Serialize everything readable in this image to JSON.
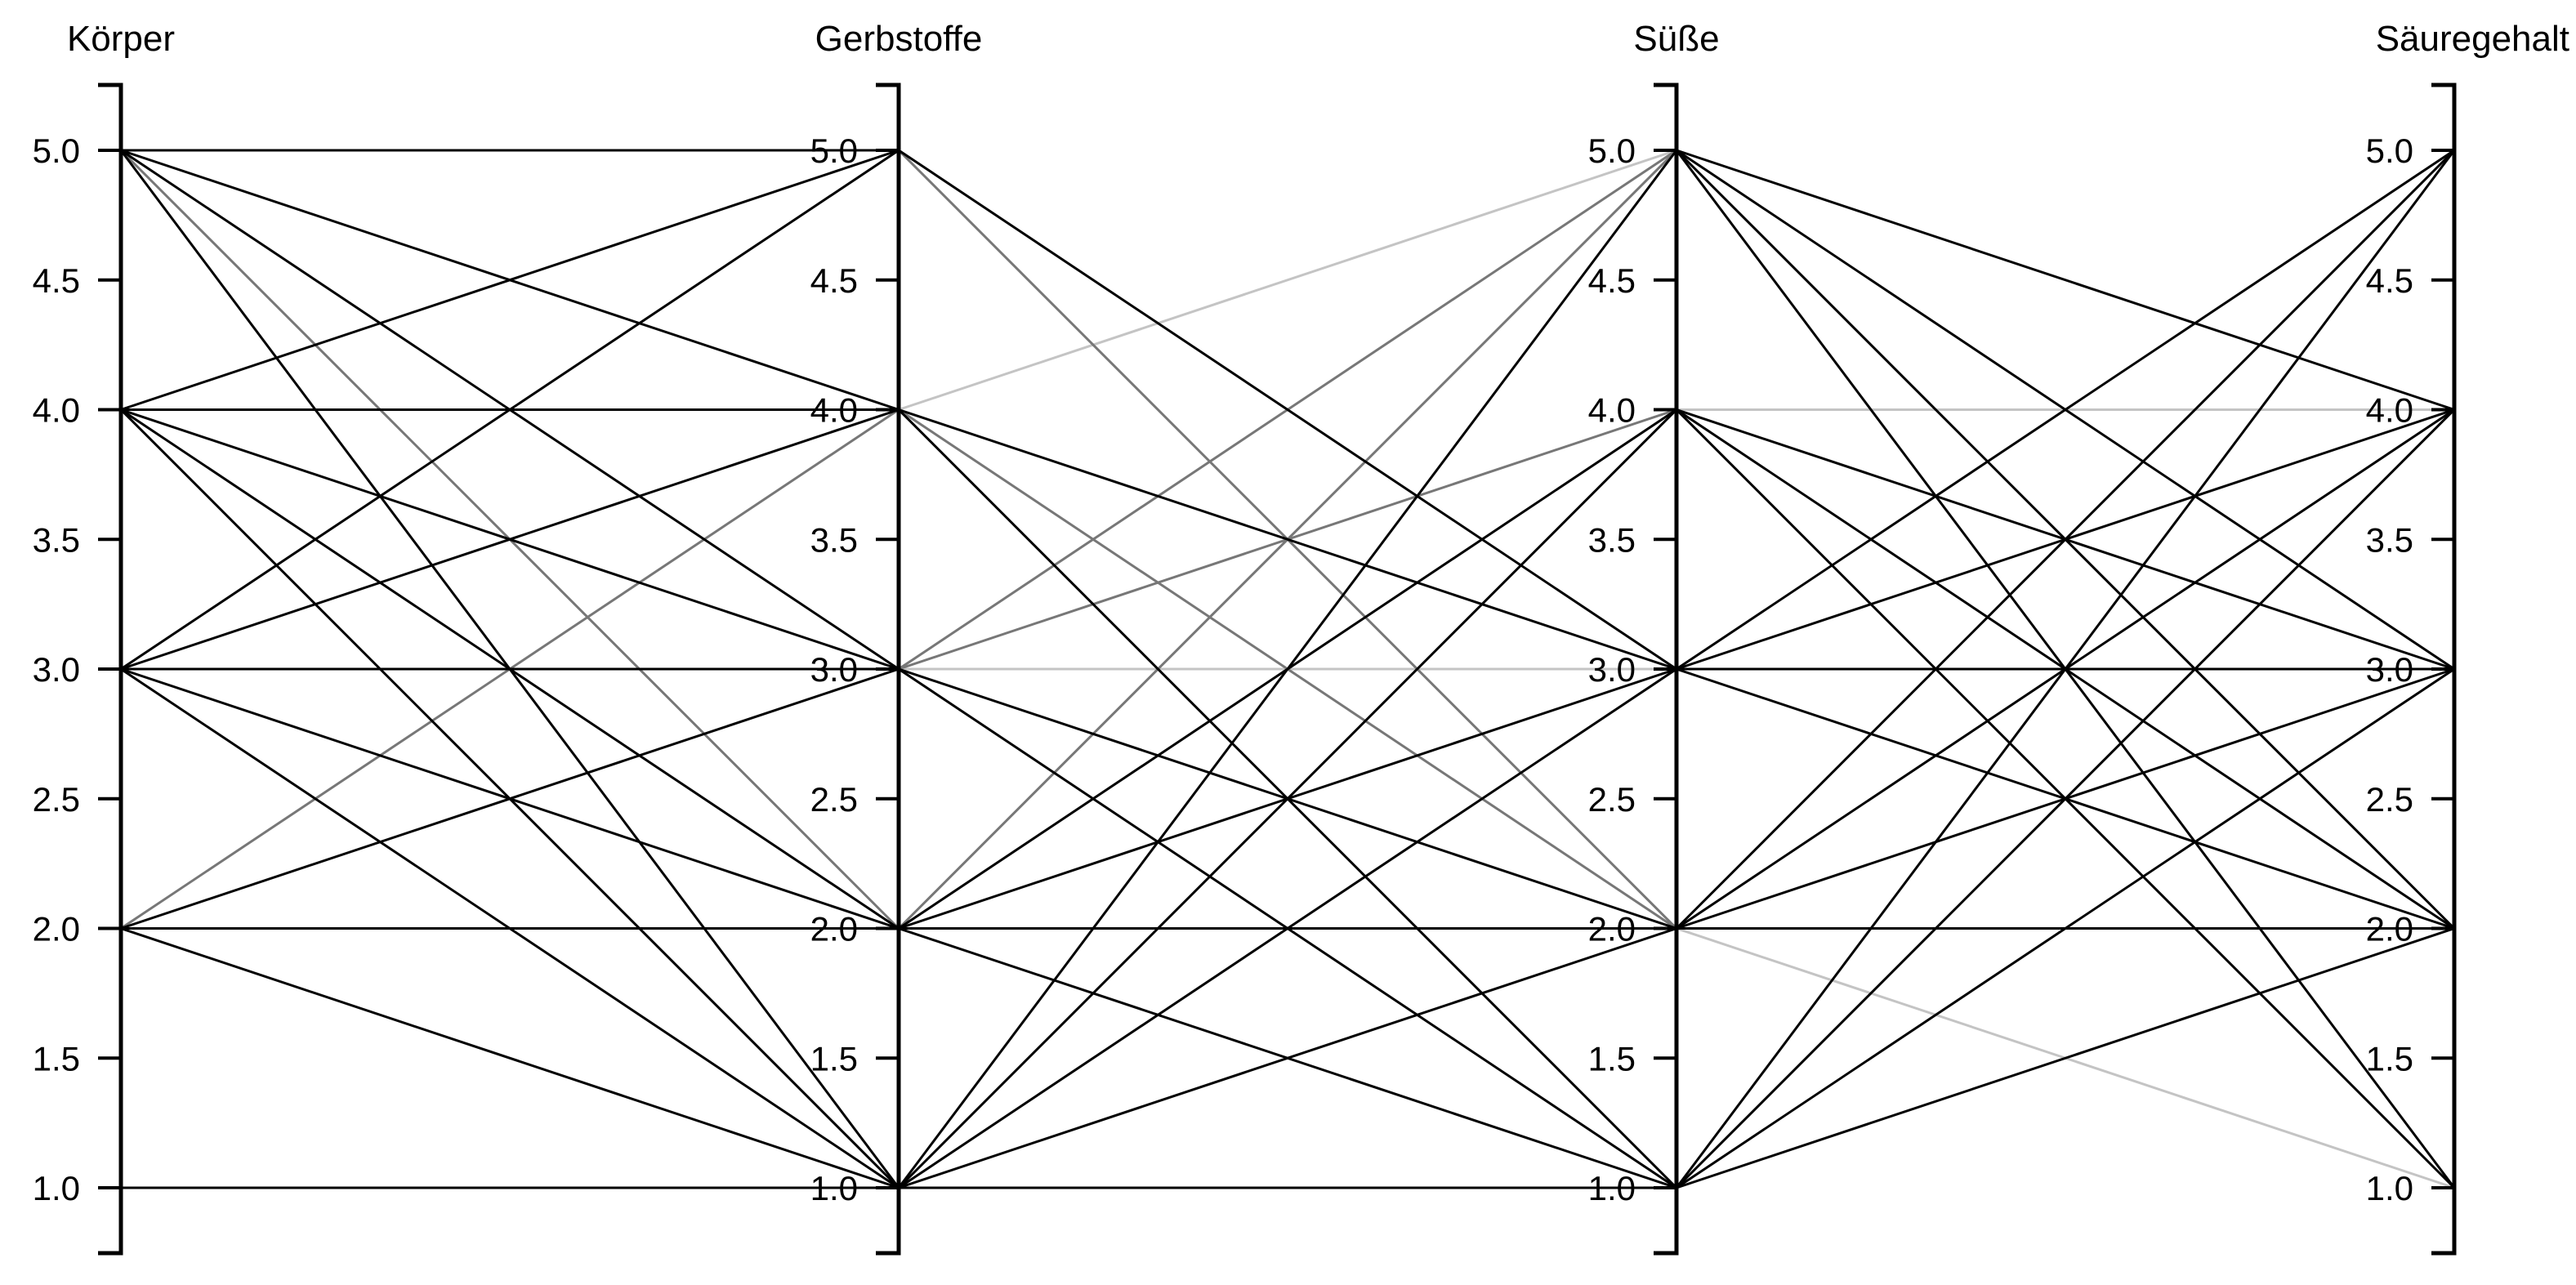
{
  "chart_data": {
    "type": "parallel_coordinates",
    "axes": [
      {
        "name": "Körper",
        "ticks": [
          "1.0",
          "1.5",
          "2.0",
          "2.5",
          "3.0",
          "3.5",
          "4.0",
          "4.5",
          "5.0"
        ]
      },
      {
        "name": "Gerbstoffe",
        "ticks": [
          "1.0",
          "1.5",
          "2.0",
          "2.5",
          "3.0",
          "3.5",
          "4.0",
          "4.5",
          "5.0"
        ]
      },
      {
        "name": "Süße",
        "ticks": [
          "1.0",
          "1.5",
          "2.0",
          "2.5",
          "3.0",
          "3.5",
          "4.0",
          "4.5",
          "5.0"
        ]
      },
      {
        "name": "Säuregehalt",
        "ticks": [
          "1.0",
          "1.5",
          "2.0",
          "2.5",
          "3.0",
          "3.5",
          "4.0",
          "4.5",
          "5.0"
        ]
      }
    ],
    "range": [
      1.0,
      5.0
    ],
    "colors": {
      "dark": "#000000",
      "mid": "#777777",
      "light": "#c4c4c4"
    },
    "segments": [
      {
        "pair": 0,
        "links": [
          [
            5,
            5,
            "dark"
          ],
          [
            5,
            4,
            "dark"
          ],
          [
            5,
            3,
            "dark"
          ],
          [
            5,
            2,
            "mid"
          ],
          [
            5,
            1,
            "dark"
          ],
          [
            4,
            5,
            "dark"
          ],
          [
            4,
            4,
            "dark"
          ],
          [
            4,
            3,
            "dark"
          ],
          [
            4,
            2,
            "dark"
          ],
          [
            4,
            1,
            "dark"
          ],
          [
            3,
            5,
            "dark"
          ],
          [
            3,
            4,
            "dark"
          ],
          [
            3,
            3,
            "dark"
          ],
          [
            3,
            2,
            "dark"
          ],
          [
            3,
            1,
            "dark"
          ],
          [
            2,
            4,
            "mid"
          ],
          [
            2,
            3,
            "dark"
          ],
          [
            2,
            2,
            "dark"
          ],
          [
            2,
            1,
            "dark"
          ],
          [
            1,
            1,
            "dark"
          ]
        ]
      },
      {
        "pair": 1,
        "links": [
          [
            5,
            3,
            "dark"
          ],
          [
            5,
            2,
            "mid"
          ],
          [
            4,
            5,
            "light"
          ],
          [
            4,
            3,
            "dark"
          ],
          [
            4,
            2,
            "mid"
          ],
          [
            4,
            1,
            "dark"
          ],
          [
            3,
            5,
            "mid"
          ],
          [
            3,
            4,
            "mid"
          ],
          [
            3,
            3,
            "light"
          ],
          [
            3,
            2,
            "dark"
          ],
          [
            3,
            1,
            "dark"
          ],
          [
            2,
            5,
            "mid"
          ],
          [
            2,
            4,
            "dark"
          ],
          [
            2,
            3,
            "dark"
          ],
          [
            2,
            2,
            "dark"
          ],
          [
            2,
            1,
            "dark"
          ],
          [
            1,
            5,
            "dark"
          ],
          [
            1,
            4,
            "dark"
          ],
          [
            1,
            3,
            "dark"
          ],
          [
            1,
            2,
            "dark"
          ],
          [
            1,
            1,
            "dark"
          ]
        ]
      },
      {
        "pair": 2,
        "links": [
          [
            5,
            4,
            "dark"
          ],
          [
            5,
            3,
            "dark"
          ],
          [
            5,
            2,
            "dark"
          ],
          [
            5,
            1,
            "dark"
          ],
          [
            4,
            4,
            "light"
          ],
          [
            4,
            3,
            "dark"
          ],
          [
            4,
            2,
            "dark"
          ],
          [
            4,
            1,
            "dark"
          ],
          [
            3,
            5,
            "dark"
          ],
          [
            3,
            4,
            "dark"
          ],
          [
            3,
            3,
            "dark"
          ],
          [
            3,
            2,
            "dark"
          ],
          [
            2,
            5,
            "dark"
          ],
          [
            2,
            4,
            "dark"
          ],
          [
            2,
            3,
            "dark"
          ],
          [
            2,
            2,
            "dark"
          ],
          [
            2,
            1,
            "light"
          ],
          [
            1,
            5,
            "dark"
          ],
          [
            1,
            4,
            "dark"
          ],
          [
            1,
            3,
            "dark"
          ],
          [
            1,
            2,
            "dark"
          ]
        ]
      }
    ]
  }
}
